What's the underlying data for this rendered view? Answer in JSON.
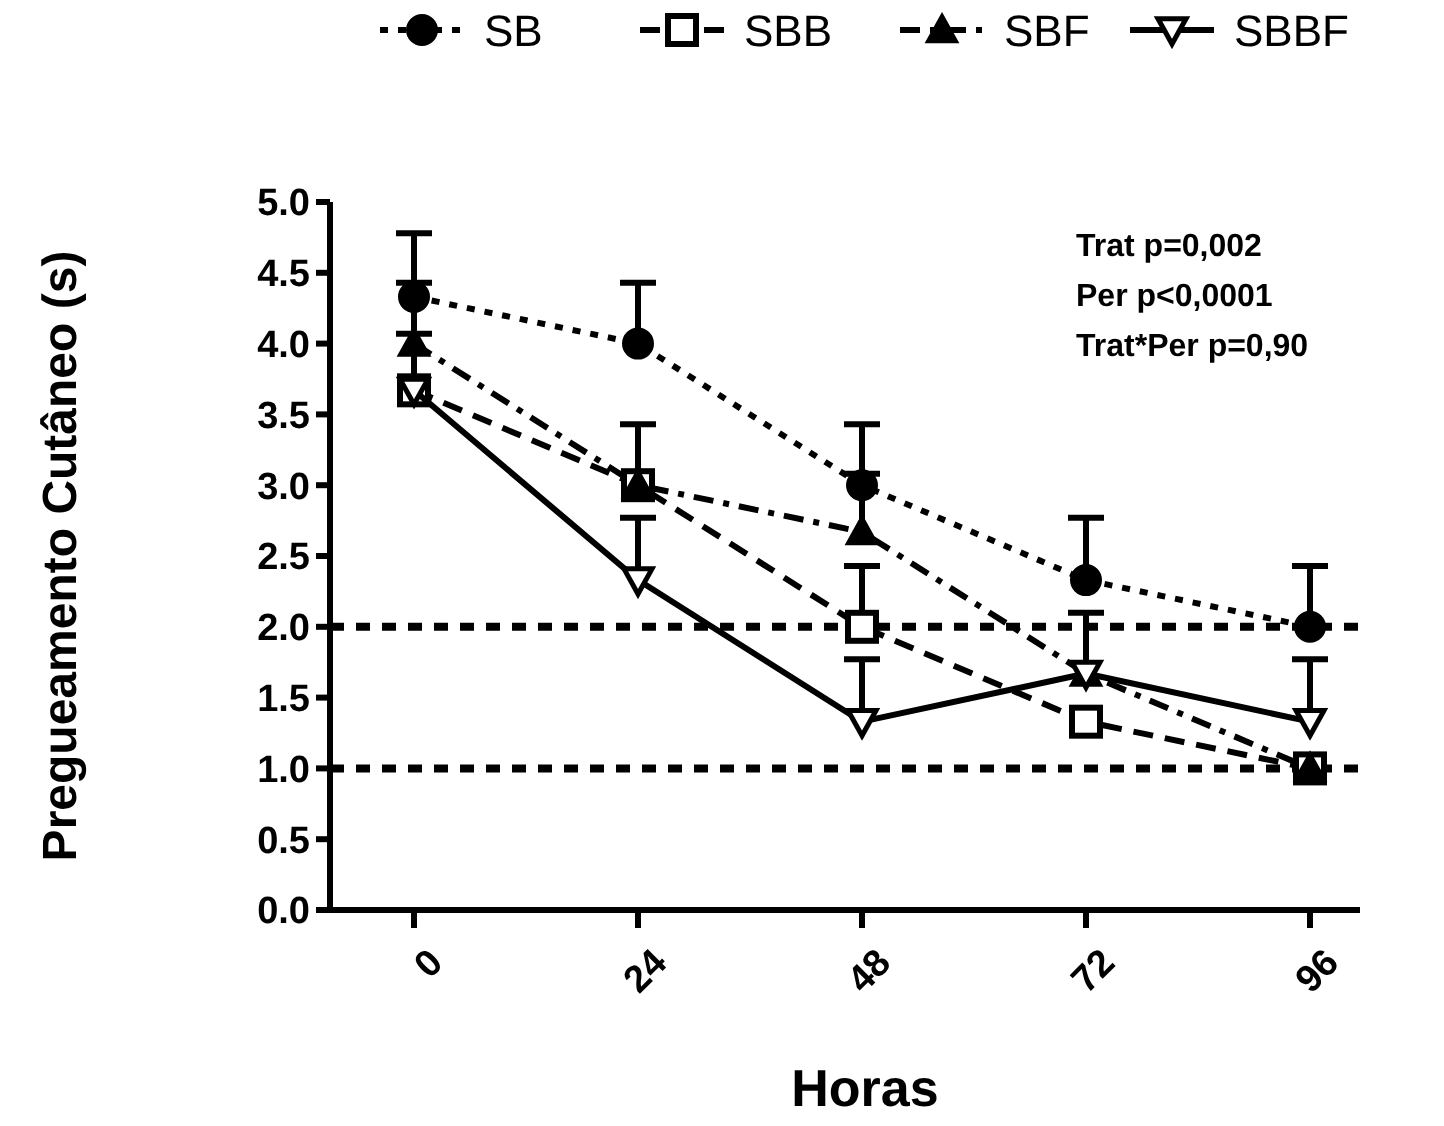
{
  "chart_data": {
    "type": "line",
    "xlabel": "Horas",
    "ylabel": "Pregueamento Cutâneo (s)",
    "categories": [
      "0",
      "24",
      "48",
      "72",
      "96"
    ],
    "series": [
      {
        "name": "SB",
        "color": "#000000",
        "marker": "circle",
        "line_style": "dotted",
        "values": [
          4.33,
          4.0,
          3.0,
          2.33,
          2.0
        ],
        "errors": [
          [
            4.33,
            4.78
          ],
          [
            4.0,
            4.43
          ],
          [
            3.0,
            3.43
          ],
          [
            2.33,
            2.77
          ],
          [
            2.0,
            2.43
          ]
        ]
      },
      {
        "name": "SBB",
        "color": "#000000",
        "marker": "square",
        "line_style": "dashed",
        "values": [
          3.67,
          3.0,
          2.0,
          1.33,
          1.0
        ],
        "errors": [
          [
            3.67,
            4.07
          ],
          [
            3.0,
            3.43
          ],
          [
            2.0,
            2.43
          ],
          null,
          null
        ]
      },
      {
        "name": "SBF",
        "color": "#000000",
        "marker": "triangle",
        "line_style": "dashdot",
        "values": [
          4.0,
          3.0,
          2.67,
          1.67,
          1.0
        ],
        "errors": [
          [
            4.0,
            4.43
          ],
          null,
          [
            2.67,
            3.08
          ],
          null,
          null
        ]
      },
      {
        "name": "SBBF",
        "color": "#000000",
        "marker": "triangle-down",
        "line_style": "solid",
        "values": [
          3.67,
          2.33,
          1.33,
          1.67,
          1.33
        ],
        "errors": [
          null,
          [
            2.33,
            2.77
          ],
          [
            1.33,
            1.77
          ],
          [
            1.67,
            2.1
          ],
          [
            1.33,
            1.77
          ]
        ]
      }
    ],
    "ylim": [
      0,
      5
    ],
    "yticks": [
      {
        "value": 0,
        "label": "0.0"
      },
      {
        "value": 0.5,
        "label": "0.5"
      },
      {
        "value": 1,
        "label": "1.0"
      },
      {
        "value": 1.5,
        "label": "1.5"
      },
      {
        "value": 2,
        "label": "2.0"
      },
      {
        "value": 2.5,
        "label": "2.5"
      },
      {
        "value": 3,
        "label": "3.0"
      },
      {
        "value": 3.5,
        "label": "3.5"
      },
      {
        "value": 4,
        "label": "4.0"
      },
      {
        "value": 4.5,
        "label": "4.5"
      },
      {
        "value": 5,
        "label": "5.0"
      }
    ],
    "ref_lines": [
      {
        "axis": "y",
        "value": 2,
        "line_style": "dotted"
      },
      {
        "axis": "y",
        "value": 1,
        "line_style": "dotted"
      }
    ],
    "annotations": [
      "Trat p=0,002",
      "Per p<0,0001",
      "Trat*Per p=0,90"
    ],
    "legend": "top",
    "grid": false
  }
}
